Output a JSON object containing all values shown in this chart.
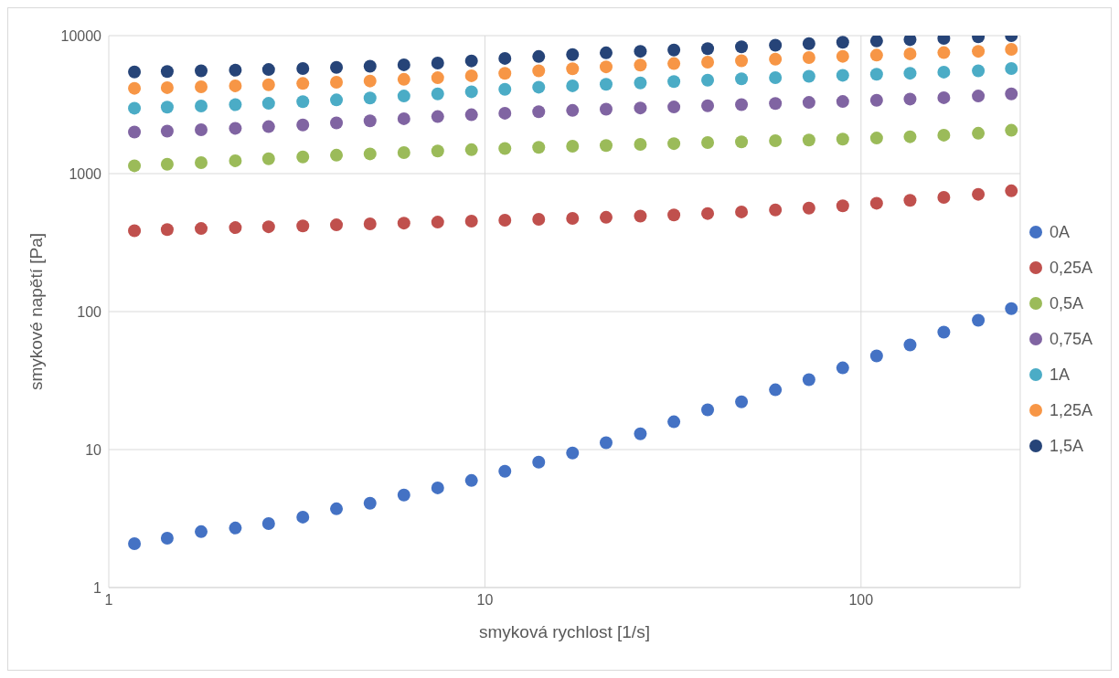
{
  "chart_data": {
    "type": "scatter",
    "xlabel": "smyková rychlost [1/s]",
    "ylabel": "smykové napětí [Pa]",
    "log": "xy",
    "grid": true,
    "legend": "right",
    "marker": "circle",
    "xlim": [
      1,
      265
    ],
    "ylim": [
      1,
      10000
    ],
    "xticks": [
      1,
      10,
      100
    ],
    "yticks": [
      1,
      10,
      100,
      1000,
      10000
    ],
    "x": [
      1.17,
      1.43,
      1.76,
      2.17,
      2.66,
      3.28,
      4.03,
      4.95,
      6.09,
      7.49,
      9.21,
      11.3,
      13.9,
      17.1,
      21.0,
      25.9,
      31.8,
      39.1,
      48.1,
      59.2,
      72.7,
      89.4,
      110,
      135,
      166,
      205,
      251
    ],
    "series": [
      {
        "name": "0A",
        "color": "#4472c4",
        "values": [
          2.08,
          2.28,
          2.54,
          2.7,
          2.91,
          3.24,
          3.72,
          4.08,
          4.68,
          5.28,
          5.97,
          6.96,
          8.1,
          9.44,
          11.2,
          13,
          15.9,
          19.4,
          22.2,
          27.1,
          32.1,
          39.1,
          47.7,
          57.3,
          71,
          86.5,
          105
        ]
      },
      {
        "name": "0,25A",
        "color": "#c0504d",
        "values": [
          386,
          393,
          400,
          406,
          412,
          418,
          425,
          432,
          438,
          445,
          452,
          459,
          466,
          474,
          482,
          492,
          502,
          514,
          528,
          545,
          562,
          584,
          610,
          640,
          672,
          708,
          750
        ]
      },
      {
        "name": "0,5A",
        "color": "#9bbb59",
        "values": [
          1140,
          1170,
          1200,
          1240,
          1280,
          1320,
          1360,
          1390,
          1420,
          1460,
          1490,
          1520,
          1550,
          1580,
          1600,
          1630,
          1650,
          1680,
          1700,
          1730,
          1750,
          1780,
          1810,
          1850,
          1900,
          1960,
          2060
        ]
      },
      {
        "name": "0,75A",
        "color": "#8064a2",
        "values": [
          2000,
          2030,
          2080,
          2130,
          2190,
          2250,
          2330,
          2410,
          2500,
          2590,
          2670,
          2740,
          2810,
          2870,
          2930,
          2990,
          3040,
          3100,
          3160,
          3220,
          3280,
          3330,
          3400,
          3470,
          3550,
          3650,
          3780
        ]
      },
      {
        "name": "1A",
        "color": "#4bacc6",
        "values": [
          2980,
          3030,
          3090,
          3160,
          3230,
          3320,
          3420,
          3530,
          3650,
          3780,
          3920,
          4080,
          4230,
          4330,
          4440,
          4540,
          4650,
          4760,
          4870,
          4960,
          5070,
          5160,
          5250,
          5340,
          5440,
          5560,
          5780
        ]
      },
      {
        "name": "1,25A",
        "color": "#f79646",
        "values": [
          4150,
          4200,
          4260,
          4330,
          4410,
          4500,
          4590,
          4690,
          4820,
          4950,
          5120,
          5330,
          5560,
          5760,
          5940,
          6120,
          6270,
          6420,
          6580,
          6760,
          6930,
          7080,
          7220,
          7380,
          7530,
          7700,
          7950
        ]
      },
      {
        "name": "1,5A",
        "color": "#264478",
        "values": [
          5450,
          5500,
          5560,
          5620,
          5680,
          5780,
          5880,
          6000,
          6150,
          6330,
          6560,
          6840,
          7060,
          7280,
          7500,
          7700,
          7870,
          8050,
          8300,
          8520,
          8750,
          8950,
          9150,
          9350,
          9550,
          9800,
          10000
        ]
      }
    ]
  }
}
